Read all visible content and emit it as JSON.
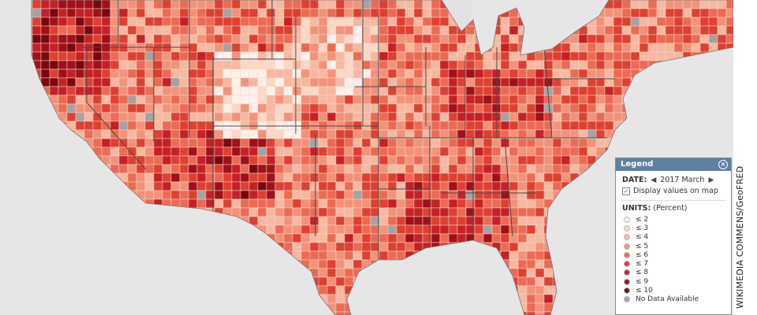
{
  "map": {
    "background_color": "#e6e6e6",
    "lake_color": "#e2e2e2",
    "border_color": "#4a4a4a",
    "no_data_color": "#a3a3a3"
  },
  "legend": {
    "title": "Legend",
    "date_label": "DATE:",
    "date_value": "2017 March",
    "display_values_label": "Display values on map",
    "display_values_checked": true,
    "units_label": "UNITS:",
    "units_value": "(Percent)",
    "items": [
      {
        "label": "≤ 2",
        "color": "#fdf0ea"
      },
      {
        "label": "≤ 3",
        "color": "#fbd7c6"
      },
      {
        "label": "≤ 4",
        "color": "#f7b8a1"
      },
      {
        "label": "≤ 5",
        "color": "#f2927a"
      },
      {
        "label": "≤ 6",
        "color": "#ec6a55"
      },
      {
        "label": "≤ 7",
        "color": "#dd4032"
      },
      {
        "label": "≤ 8",
        "color": "#c52026"
      },
      {
        "label": "≤ 9",
        "color": "#a01018"
      },
      {
        "label": "≤ 10",
        "color": "#7a0610"
      },
      {
        "label": "No Data Available",
        "color": "#a3a3a3"
      }
    ]
  },
  "credit": "WIKIMEDIA COMMENS/GeoFRED",
  "icons": {
    "close": "close-icon",
    "prev": "chevron-left-icon",
    "next": "chevron-right-icon",
    "check": "checkbox-icon"
  }
}
